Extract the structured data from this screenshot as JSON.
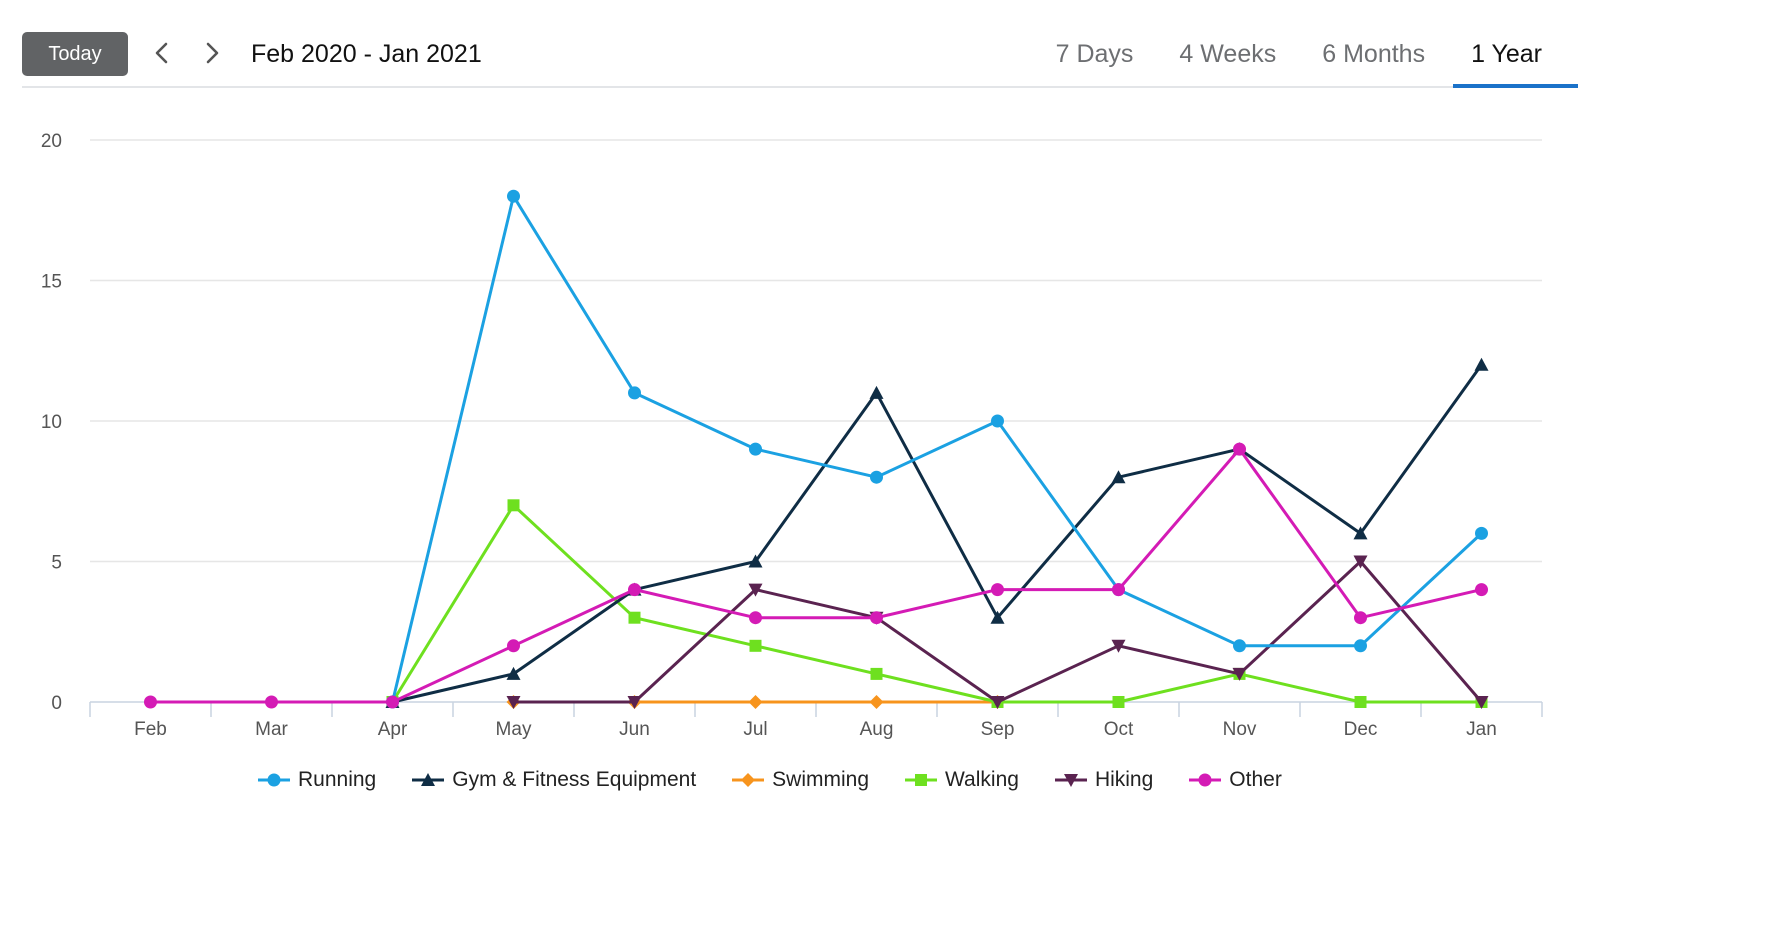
{
  "toolbar": {
    "today_label": "Today",
    "prev_icon": "chevron-left-icon",
    "next_icon": "chevron-right-icon",
    "range_label": "Feb 2020 - Jan 2021",
    "tabs": [
      {
        "label": "7 Days",
        "active": false
      },
      {
        "label": "4 Weeks",
        "active": false
      },
      {
        "label": "6 Months",
        "active": false
      },
      {
        "label": "1 Year",
        "active": true
      }
    ]
  },
  "chart_data": {
    "type": "line",
    "categories": [
      "Feb",
      "Mar",
      "Apr",
      "May",
      "Jun",
      "Jul",
      "Aug",
      "Sep",
      "Oct",
      "Nov",
      "Dec",
      "Jan"
    ],
    "ylim": [
      0,
      20
    ],
    "yticks": [
      0,
      5,
      10,
      15,
      20
    ],
    "grid": true,
    "legend_position": "bottom",
    "series": [
      {
        "name": "Running",
        "color": "#1ba1e2",
        "marker": "circle",
        "values": [
          null,
          null,
          0,
          18,
          11,
          9,
          8,
          10,
          4,
          2,
          2,
          6
        ]
      },
      {
        "name": "Gym & Fitness Equipment",
        "color": "#0f2d45",
        "marker": "triangle-up",
        "values": [
          null,
          null,
          0,
          1,
          4,
          5,
          11,
          3,
          8,
          9,
          6,
          12
        ]
      },
      {
        "name": "Swimming",
        "color": "#f7941d",
        "marker": "diamond",
        "values": [
          null,
          null,
          null,
          0,
          0,
          0,
          0,
          0,
          null,
          null,
          null,
          null
        ]
      },
      {
        "name": "Walking",
        "color": "#6ee01f",
        "marker": "square",
        "values": [
          null,
          null,
          0,
          7,
          3,
          2,
          1,
          0,
          0,
          1,
          0,
          0
        ]
      },
      {
        "name": "Hiking",
        "color": "#5a2350",
        "marker": "triangle-down",
        "values": [
          null,
          null,
          null,
          0,
          0,
          4,
          3,
          0,
          2,
          1,
          5,
          0
        ]
      },
      {
        "name": "Other",
        "color": "#d41bb5",
        "marker": "circle",
        "values": [
          0,
          0,
          0,
          2,
          4,
          3,
          3,
          4,
          4,
          9,
          3,
          4
        ]
      }
    ]
  }
}
